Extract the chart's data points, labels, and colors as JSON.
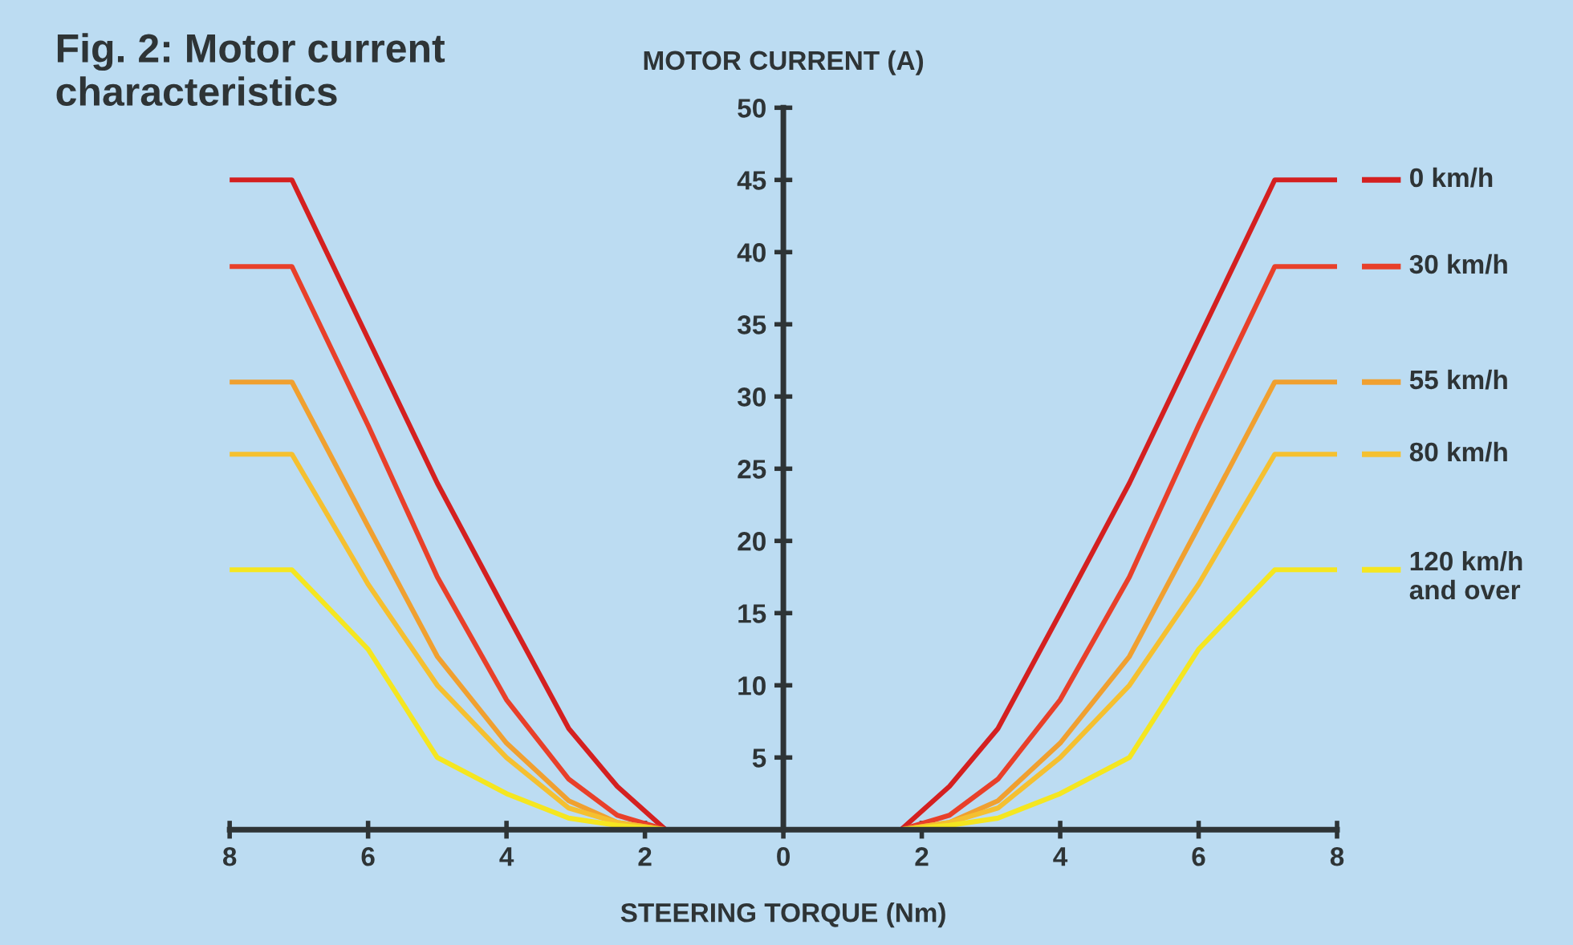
{
  "chart_data": {
    "type": "line",
    "title": "Fig. 2: Motor current\ncharacteristics",
    "xlabel": "STEERING TORQUE (Nm)",
    "ylabel": "MOTOR CURRENT (A)",
    "x": [
      -8,
      -7.1,
      -6,
      -5,
      -4,
      -3.1,
      -2.4,
      -1.7,
      1.7,
      2.4,
      3.1,
      4,
      5,
      6,
      7.1,
      8
    ],
    "series": [
      {
        "name": "0 km/h",
        "color": "#d42020",
        "values": [
          45,
          45,
          34,
          24,
          15,
          7,
          3,
          0,
          0,
          3,
          7,
          15,
          24,
          34,
          45,
          45
        ]
      },
      {
        "name": "30 km/h",
        "color": "#e8402a",
        "values": [
          39,
          39,
          28,
          17.5,
          9,
          3.5,
          1,
          0,
          0,
          1,
          3.5,
          9,
          17.5,
          28,
          39,
          39
        ]
      },
      {
        "name": "55 km/h",
        "color": "#f0a030",
        "values": [
          31,
          31,
          21,
          12,
          6,
          2,
          0.5,
          0,
          0,
          0.5,
          2,
          6,
          12,
          21,
          31,
          31
        ]
      },
      {
        "name": "80 km/h",
        "color": "#f5c030",
        "values": [
          26,
          26,
          17,
          10,
          5,
          1.5,
          0.5,
          0,
          0,
          0.5,
          1.5,
          5,
          10,
          17,
          26,
          26
        ]
      },
      {
        "name": "120 km/h\nand over",
        "color": "#f5e620",
        "values": [
          18,
          18,
          12.5,
          5,
          2.5,
          0.8,
          0.3,
          0,
          0,
          0.3,
          0.8,
          2.5,
          5,
          12.5,
          18,
          18
        ]
      }
    ],
    "xlim": [
      -8,
      8
    ],
    "ylim": [
      0,
      50
    ],
    "xticks": [
      {
        "value": -8,
        "label": "8"
      },
      {
        "value": -6,
        "label": "6"
      },
      {
        "value": -4,
        "label": "4"
      },
      {
        "value": -2,
        "label": "2"
      },
      0,
      2,
      4,
      6,
      8
    ],
    "yticks": [
      5,
      10,
      15,
      20,
      25,
      30,
      35,
      40,
      45,
      50
    ],
    "legend": "right",
    "grid": false,
    "marker": "none",
    "line_style": "solid"
  }
}
